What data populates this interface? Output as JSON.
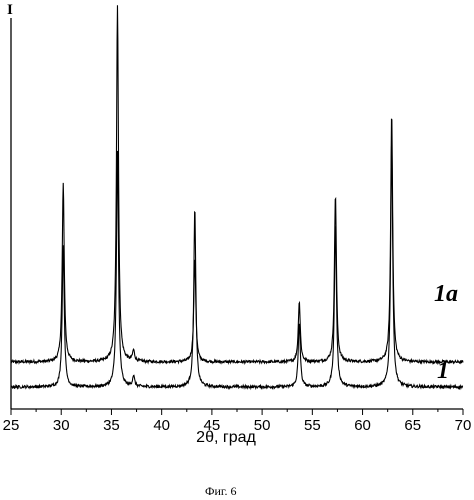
{
  "chart_data": {
    "type": "line",
    "ylabel": "I",
    "xlabel": "2θ, град",
    "xlim": [
      25,
      70
    ],
    "x_ticks": [
      "25",
      "30",
      "35",
      "40",
      "45",
      "50",
      "55",
      "60",
      "65",
      "70"
    ],
    "grid": false,
    "legend": "none",
    "caption": "Фиг. 6",
    "series": [
      {
        "name": "1a",
        "baseline": 0.07,
        "peaks": [
          {
            "x": 30.2,
            "y": 0.5
          },
          {
            "x": 35.6,
            "y": 1.0
          },
          {
            "x": 37.2,
            "y": 0.03
          },
          {
            "x": 43.3,
            "y": 0.29
          },
          {
            "x": 53.7,
            "y": 0.17
          },
          {
            "x": 57.3,
            "y": 0.47
          },
          {
            "x": 62.9,
            "y": 0.7
          }
        ]
      },
      {
        "name": "1",
        "baseline": 0.0,
        "peaks": [
          {
            "x": 30.2,
            "y": 0.4
          },
          {
            "x": 35.6,
            "y": 0.66
          },
          {
            "x": 37.2,
            "y": 0.03
          },
          {
            "x": 43.3,
            "y": 0.5
          },
          {
            "x": 53.7,
            "y": 0.18
          },
          {
            "x": 57.3,
            "y": 0.46
          },
          {
            "x": 62.9,
            "y": 0.69
          }
        ]
      }
    ]
  }
}
